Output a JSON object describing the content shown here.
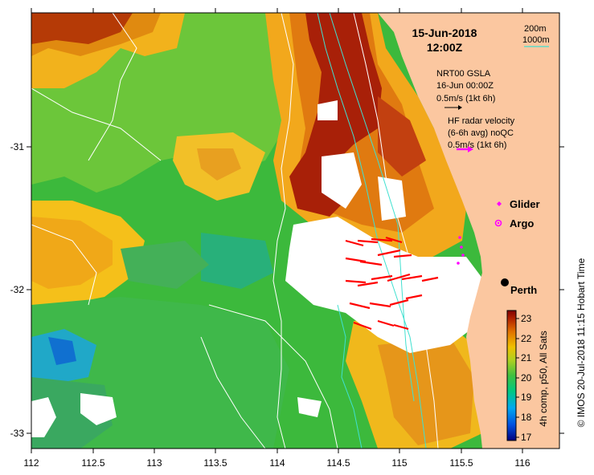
{
  "header": {
    "date": "15-Jun-2018",
    "time": "12:00Z"
  },
  "contour_legend": {
    "depth_200": "200m",
    "depth_1000": "1000m"
  },
  "gsla": {
    "line1": "NRT00 GSLA",
    "line2": "16-Jun 00:00Z",
    "line3": "0.5m/s (1kt 6h)"
  },
  "hf_radar": {
    "line1": "HF radar velocity",
    "line2": "(6-6h avg) noQC",
    "line3": "0.5m/s (1kt 6h)"
  },
  "markers": {
    "glider": "Glider",
    "argo": "Argo",
    "perth": "Perth"
  },
  "colorbar": {
    "label": "4h comp, p50, All Sats",
    "ticks": [
      "23",
      "22",
      "21",
      "20",
      "19",
      "18",
      "17"
    ],
    "min": 17,
    "max": 23
  },
  "credit": "© IMOS 20-Jul-2018 11:15 Hobart Time",
  "axes": {
    "x_ticks": [
      "112",
      "112.5",
      "113",
      "113.5",
      "114",
      "114.5",
      "115",
      "115.5",
      "116"
    ],
    "y_ticks": [
      "-31",
      "-32",
      "-33"
    ]
  },
  "colors": {
    "land": "#fbc7a0",
    "contour_200": "#40e0d0",
    "contour_1000": "#ffffff",
    "hf_vector": "#ff0000",
    "argo": "#ff00ff"
  }
}
